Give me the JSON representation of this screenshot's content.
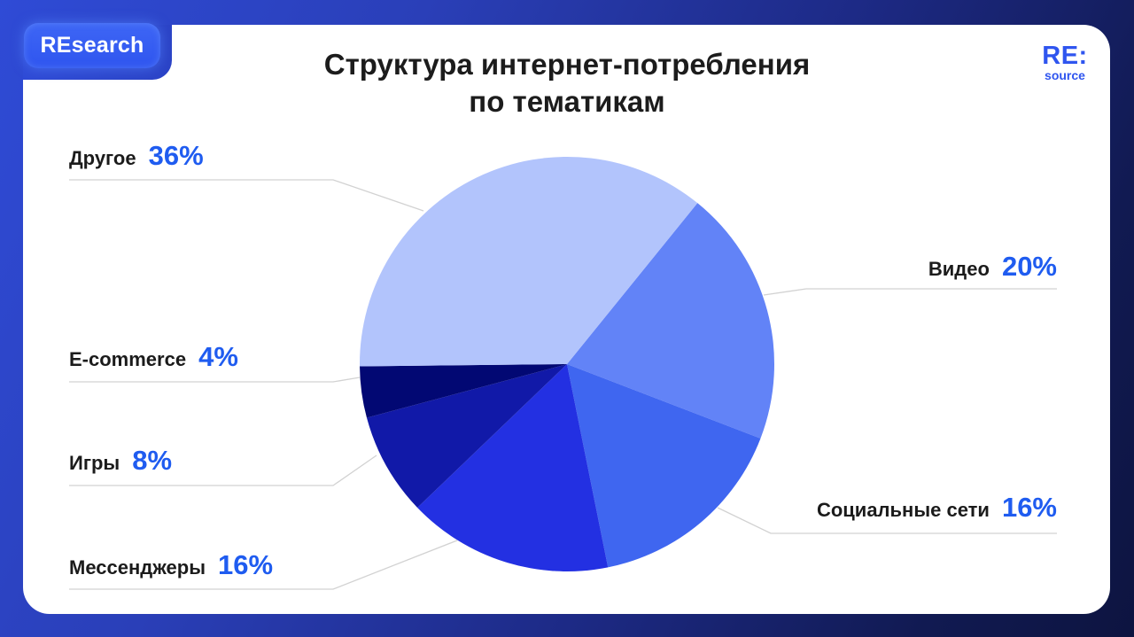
{
  "badge": {
    "label": "REsearch"
  },
  "header": {
    "title_line1": "Структура интернет-потребления",
    "title_line2": "по тематикам"
  },
  "logo": {
    "main": "RE:",
    "sub": "source"
  },
  "colors": {
    "background": "#2b42c4",
    "card": "#ffffff",
    "accent": "#1f5cf0",
    "label_text": "#1b1b1b",
    "leader_line": "#d2d2d2"
  },
  "chart_data": {
    "type": "pie",
    "title": "Структура интернет-потребления по тематикам",
    "start_angle_deg_clockwise_from_top": 39,
    "direction": "clockwise",
    "slices": [
      {
        "label": "Видео",
        "value": 20,
        "display": "20%",
        "color": "#6283f7"
      },
      {
        "label": "Социальные сети",
        "value": 16,
        "display": "16%",
        "color": "#3f66f0"
      },
      {
        "label": "Мессенджеры",
        "value": 16,
        "display": "16%",
        "color": "#2330e2"
      },
      {
        "label": "Игры",
        "value": 8,
        "display": "8%",
        "color": "#1119a8"
      },
      {
        "label": "E-commerce",
        "value": 4,
        "display": "4%",
        "color": "#020873"
      },
      {
        "label": "Другое",
        "value": 36,
        "display": "36%",
        "color": "#b2c4fc"
      }
    ],
    "legend_position": "callout labels around pie"
  },
  "labels": [
    {
      "name": "Другое",
      "pct": "36%"
    },
    {
      "name": "Видео",
      "pct": "20%"
    },
    {
      "name": "E-commerce",
      "pct": "4%"
    },
    {
      "name": "Игры",
      "pct": "8%"
    },
    {
      "name": "Социальные сети",
      "pct": "16%"
    },
    {
      "name": "Мессенджеры",
      "pct": "16%"
    }
  ]
}
